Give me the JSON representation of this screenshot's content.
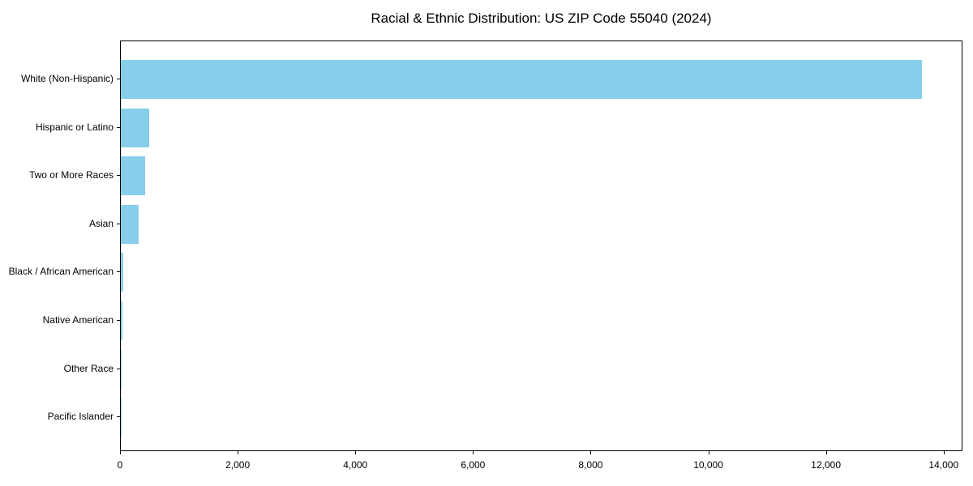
{
  "chart_data": {
    "type": "bar",
    "orientation": "horizontal",
    "title": "Racial & Ethnic Distribution: US ZIP Code 55040 (2024)",
    "categories": [
      "White (Non-Hispanic)",
      "Hispanic or Latino",
      "Two or More Races",
      "Asian",
      "Black / African American",
      "Native American",
      "Other Race",
      "Pacific Islander"
    ],
    "values": [
      13620,
      480,
      410,
      300,
      45,
      25,
      12,
      4
    ],
    "xlabel": "",
    "ylabel": "",
    "xlim": [
      0,
      14320
    ],
    "x_ticks": [
      0,
      2000,
      4000,
      6000,
      8000,
      10000,
      12000,
      14000
    ],
    "x_tick_labels": [
      "0",
      "2,000",
      "4,000",
      "6,000",
      "8,000",
      "10,000",
      "12,000",
      "14,000"
    ],
    "bar_color": "#87CEEB",
    "text_color": "#000000",
    "axis_color": "#000000",
    "grid": false,
    "legend": null,
    "background": "#ffffff"
  }
}
